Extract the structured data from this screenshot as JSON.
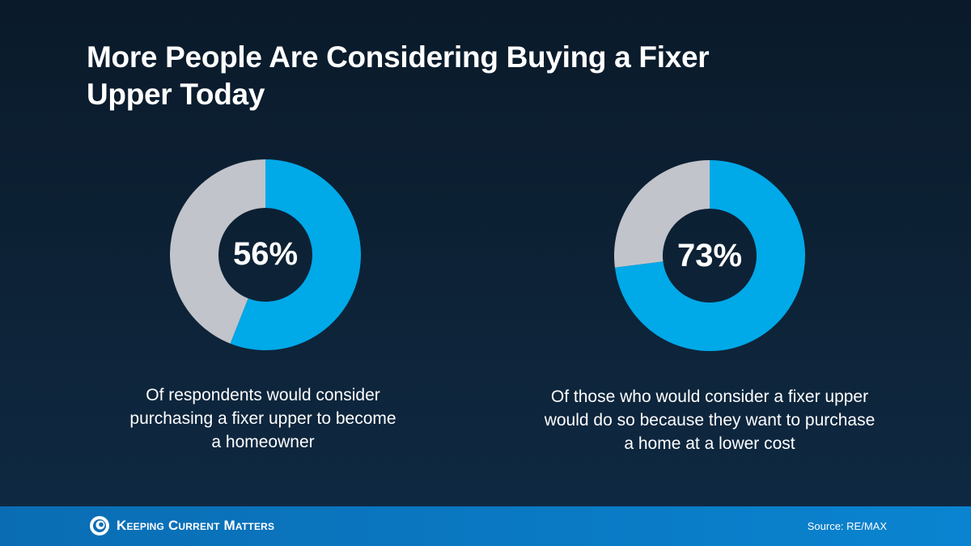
{
  "title": "More People Are Considering Buying a Fixer Upper Today",
  "chart_data": [
    {
      "type": "pie",
      "donut": true,
      "slices": [
        {
          "value": 56,
          "color": "#00a9e8"
        },
        {
          "value": 44,
          "color": "#c2c4cb"
        }
      ],
      "center_label": "56%",
      "caption": "Of respondents would consider purchasing a fixer upper to become a homeowner"
    },
    {
      "type": "pie",
      "donut": true,
      "slices": [
        {
          "value": 73,
          "color": "#00a9e8"
        },
        {
          "value": 27,
          "color": "#c2c4cb"
        }
      ],
      "center_label": "73%",
      "caption": "Of those who would consider a fixer upper would do so because they want to purchase a home at a lower cost"
    }
  ],
  "footer": {
    "brand": "Keeping Current Matters",
    "source": "Source: RE/MAX",
    "logo_icon": "swirl-icon"
  }
}
